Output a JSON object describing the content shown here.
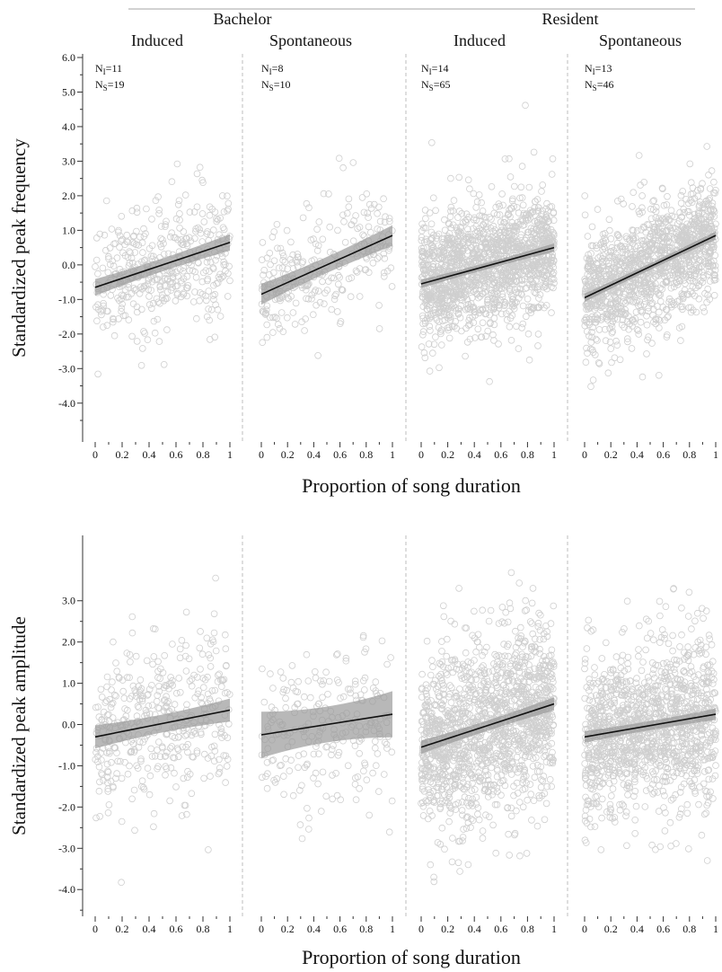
{
  "header": {
    "groups": [
      {
        "label": "Bachelor",
        "panels": [
          "Induced",
          "Spontaneous"
        ]
      },
      {
        "label": "Resident",
        "panels": [
          "Induced",
          "Spontaneous"
        ]
      }
    ]
  },
  "colors": {
    "points": "#cfcfcf",
    "fit_line": "#111111",
    "confidence_band": "#9a9a9a",
    "axis": "#333333",
    "separator": "#bdbdbd"
  },
  "chart_data": [
    {
      "type": "scatter",
      "ylabel": "Standardized peak frequency",
      "xlabel": "Proportion of song duration",
      "xlim": [
        0,
        1
      ],
      "ylim": [
        -4.5,
        6.0
      ],
      "yticks": [
        "6.0",
        "5.0",
        "4.0",
        "3.0",
        "2.0",
        "1.0",
        "0.0",
        "-1.0",
        "-2.0",
        "-3.0",
        "-4.0"
      ],
      "xticks": [
        "0",
        "0.2",
        "0.4",
        "0.6",
        "0.8",
        "1"
      ],
      "grid": false,
      "panels": [
        {
          "group": "Bachelor",
          "condition": "Induced",
          "ni": "NI=11",
          "ns": "NS=19",
          "fit": {
            "x0": 0,
            "y0": -0.65,
            "x1": 1,
            "y1": 0.65
          },
          "ci": 0.12,
          "n_points": 420,
          "spread": 0.85
        },
        {
          "group": "Bachelor",
          "condition": "Spontaneous",
          "ni": "NI=8",
          "ns": "NS=10",
          "fit": {
            "x0": 0,
            "y0": -0.85,
            "x1": 1,
            "y1": 0.85
          },
          "ci": 0.15,
          "n_points": 280,
          "spread": 0.8
        },
        {
          "group": "Resident",
          "condition": "Induced",
          "ni": "NI=14",
          "ns": "NS=65",
          "fit": {
            "x0": 0,
            "y0": -0.55,
            "x1": 1,
            "y1": 0.5
          },
          "ci": 0.06,
          "n_points": 1500,
          "spread": 0.9
        },
        {
          "group": "Resident",
          "condition": "Spontaneous",
          "ni": "NI=13",
          "ns": "NS=46",
          "fit": {
            "x0": 0,
            "y0": -0.95,
            "x1": 1,
            "y1": 0.85
          },
          "ci": 0.06,
          "n_points": 1300,
          "spread": 0.85
        }
      ]
    },
    {
      "type": "scatter",
      "ylabel": "Standardized peak amplitude",
      "xlabel": "Proportion of song duration",
      "xlim": [
        0,
        1
      ],
      "ylim": [
        -4.3,
        3.8
      ],
      "yticks": [
        "3.0",
        "2.0",
        "1.0",
        "0.0",
        "-1.0",
        "-2.0",
        "-3.0",
        "-4.0"
      ],
      "xticks": [
        "0",
        "0.2",
        "0.4",
        "0.6",
        "0.8",
        "1"
      ],
      "grid": false,
      "panels": [
        {
          "group": "Bachelor",
          "condition": "Induced",
          "fit": {
            "x0": 0,
            "y0": -0.3,
            "x1": 1,
            "y1": 0.35
          },
          "ci": 0.14,
          "n_points": 420,
          "spread": 1.0
        },
        {
          "group": "Bachelor",
          "condition": "Spontaneous",
          "fit": {
            "x0": 0,
            "y0": -0.25,
            "x1": 1,
            "y1": 0.25
          },
          "ci": 0.28,
          "n_points": 240,
          "spread": 0.95
        },
        {
          "group": "Resident",
          "condition": "Induced",
          "fit": {
            "x0": 0,
            "y0": -0.55,
            "x1": 1,
            "y1": 0.5
          },
          "ci": 0.08,
          "n_points": 1500,
          "spread": 1.05
        },
        {
          "group": "Resident",
          "condition": "Spontaneous",
          "fit": {
            "x0": 0,
            "y0": -0.3,
            "x1": 1,
            "y1": 0.25
          },
          "ci": 0.07,
          "n_points": 1300,
          "spread": 1.0
        }
      ]
    }
  ]
}
